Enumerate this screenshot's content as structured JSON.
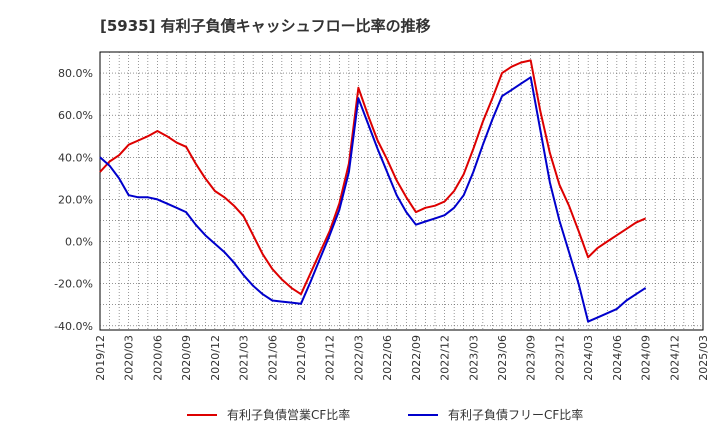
{
  "chart_data": {
    "type": "line",
    "title": "[5935]  有利子負債キャッシュフロー比率の推移",
    "xlabel": "",
    "ylabel": "",
    "ylim": [
      -42,
      90
    ],
    "yticks": [
      -40,
      -20,
      0,
      20,
      40,
      60,
      80
    ],
    "ytick_labels": [
      "-40.0%",
      "-20.0%",
      "0.0%",
      "20.0%",
      "40.0%",
      "60.0%",
      "80.0%"
    ],
    "xlim": [
      "2019-12",
      "2025-03"
    ],
    "xtick_labels": [
      "2019/12",
      "2020/03",
      "2020/06",
      "2020/09",
      "2020/12",
      "2021/03",
      "2021/06",
      "2021/09",
      "2021/12",
      "2022/03",
      "2022/06",
      "2022/09",
      "2022/12",
      "2023/03",
      "2023/06",
      "2023/09",
      "2023/12",
      "2024/03",
      "2024/06",
      "2024/09",
      "2024/12",
      "2025/03"
    ],
    "grid": true,
    "legend_position": "bottom",
    "x": [
      "2019-12",
      "2020-01",
      "2020-02",
      "2020-03",
      "2020-04",
      "2020-05",
      "2020-06",
      "2020-07",
      "2020-08",
      "2020-09",
      "2020-10",
      "2020-11",
      "2020-12",
      "2021-01",
      "2021-02",
      "2021-03",
      "2021-04",
      "2021-05",
      "2021-06",
      "2021-07",
      "2021-08",
      "2021-09",
      "2021-10",
      "2021-11",
      "2021-12",
      "2022-01",
      "2022-02",
      "2022-03",
      "2022-04",
      "2022-05",
      "2022-06",
      "2022-07",
      "2022-08",
      "2022-09",
      "2022-10",
      "2022-11",
      "2022-12",
      "2023-01",
      "2023-02",
      "2023-03",
      "2023-04",
      "2023-05",
      "2023-06",
      "2023-07",
      "2023-08",
      "2023-09",
      "2023-10",
      "2023-11",
      "2023-12",
      "2024-01",
      "2024-02",
      "2024-03",
      "2024-04",
      "2024-05",
      "2024-06",
      "2024-07",
      "2024-08",
      "2024-09"
    ],
    "series": [
      {
        "name": "有利子負債営業CF比率",
        "color": "#dd0000",
        "values": [
          33,
          38,
          41,
          46,
          48,
          50,
          52.5,
          50,
          47,
          45,
          37,
          30,
          24,
          21,
          17,
          12,
          3,
          -6,
          -13,
          -18,
          -22,
          -25,
          -15,
          -5,
          5,
          18,
          37,
          73,
          60,
          48,
          39,
          29,
          21,
          14,
          16,
          17,
          19,
          24,
          32,
          44,
          57,
          68,
          80,
          83,
          85,
          86,
          62,
          42,
          27,
          17,
          5,
          -7.5,
          -3,
          0,
          3,
          6,
          9,
          11
        ]
      },
      {
        "name": "有利子負債フリーCF比率",
        "color": "#0000cc",
        "values": [
          40,
          36,
          30,
          22,
          21,
          21,
          20,
          18,
          16,
          14,
          8,
          3,
          -1,
          -5,
          -10,
          -16,
          -21,
          -25,
          -28,
          -28.5,
          -29,
          -29.5,
          -19,
          -8,
          3,
          15,
          33,
          68,
          56,
          44,
          33,
          22,
          14,
          8,
          9.5,
          11,
          12.5,
          16,
          22,
          33,
          46,
          58,
          69,
          72,
          75,
          78,
          53,
          28,
          10,
          -5,
          -20,
          -38,
          -36,
          -34,
          -32,
          -28,
          -25,
          -22
        ]
      }
    ]
  }
}
